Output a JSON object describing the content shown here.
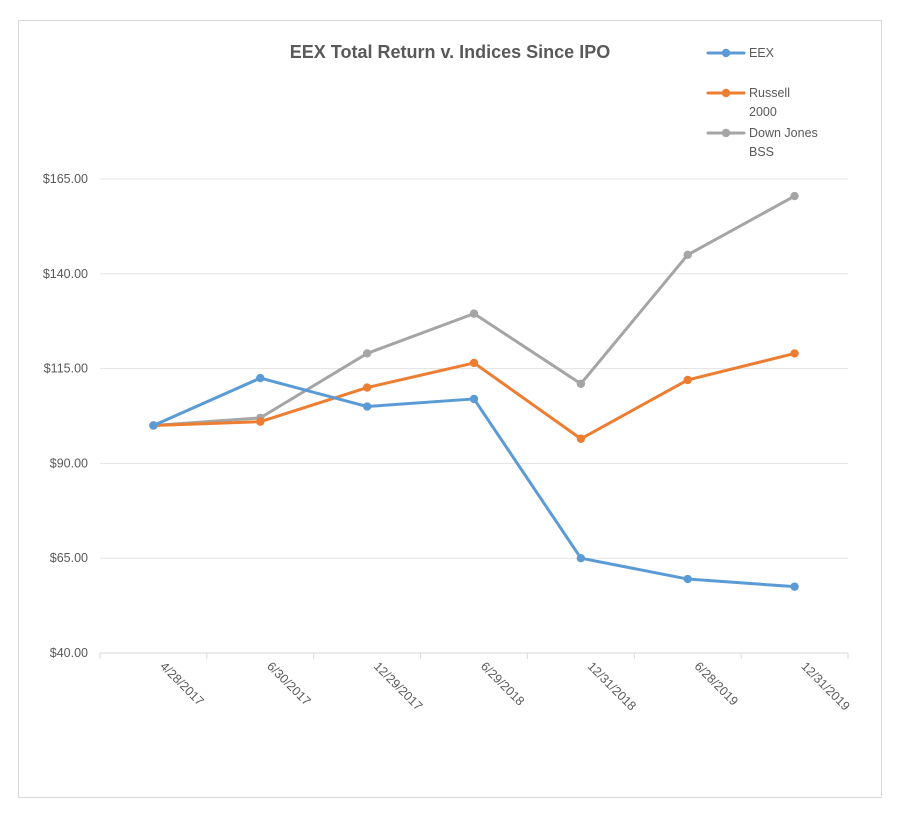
{
  "chart_data": {
    "type": "line",
    "title": "EEX Total Return v. Indices Since IPO",
    "xlabel": "",
    "ylabel": "",
    "categories": [
      "4/28/2017",
      "6/30/2017",
      "12/29/2017",
      "6/29/2018",
      "12/31/2018",
      "6/28/2019",
      "12/31/2019"
    ],
    "ylim": [
      40,
      165
    ],
    "yticks": [
      40,
      65,
      90,
      115,
      140,
      165
    ],
    "ytick_labels": [
      "$40.00",
      "$65.00",
      "$90.00",
      "$115.00",
      "$140.00",
      "$165.00"
    ],
    "grid": "horizontal",
    "legend_position": "top-right",
    "series": [
      {
        "name": "EEX",
        "legend_lines": [
          "EEX"
        ],
        "color": "#5b9bd5",
        "values": [
          100,
          112.5,
          105,
          107,
          65,
          59.5,
          57.5
        ]
      },
      {
        "name": "Russell 2000",
        "legend_lines": [
          "Russell",
          "2000"
        ],
        "color": "#ed7d31",
        "values": [
          100,
          101,
          110,
          116.5,
          96.5,
          112,
          119
        ]
      },
      {
        "name": "Down Jones BSS",
        "legend_lines": [
          "Down Jones",
          "BSS"
        ],
        "color": "#a5a5a5",
        "values": [
          100,
          102,
          119,
          129.5,
          111,
          145,
          160.5
        ]
      }
    ]
  }
}
